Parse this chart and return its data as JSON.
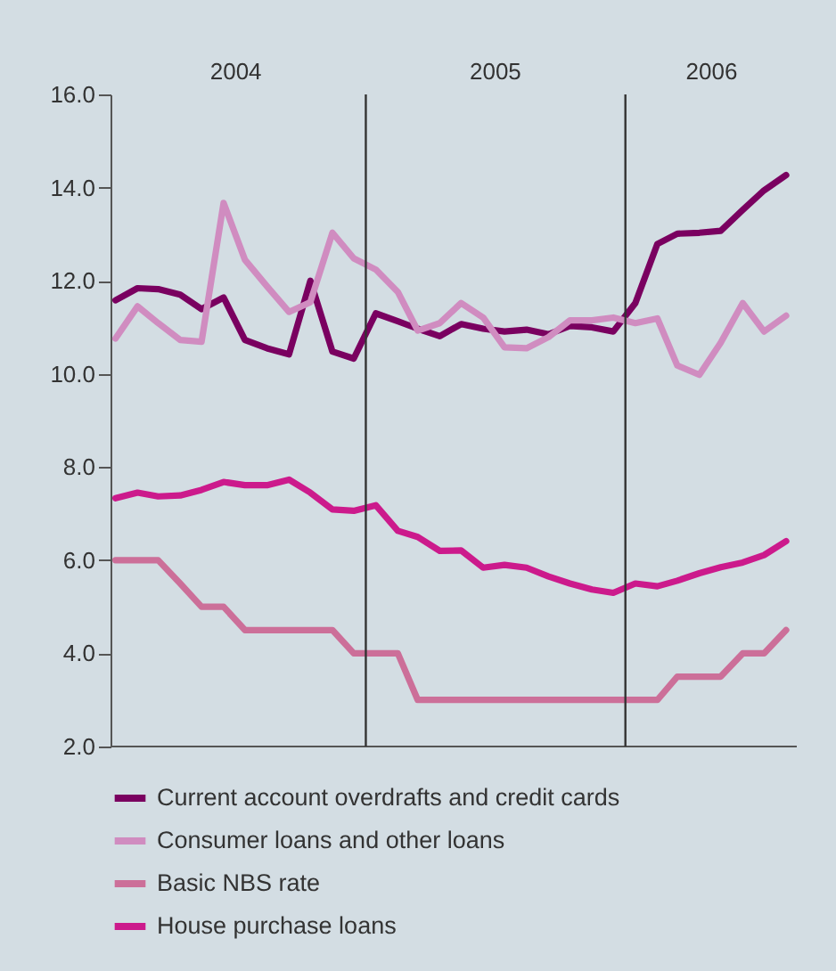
{
  "chart_data": {
    "type": "line",
    "x": [
      "2004-01-15",
      "2004-02-15",
      "2004-03-15",
      "2004-04-15",
      "2004-05-15",
      "2004-06-15",
      "2004-07-15",
      "2004-08-15",
      "2004-09-15",
      "2004-10-15",
      "2004-11-15",
      "2004-12-15",
      "2005-01-15",
      "2005-02-15",
      "2005-03-15",
      "2005-04-15",
      "2005-05-15",
      "2005-06-15",
      "2005-07-15",
      "2005-08-15",
      "2005-09-15",
      "2005-10-15",
      "2005-11-15",
      "2005-12-15",
      "2006-01-15",
      "2006-02-15",
      "2006-03-15",
      "2006-04-15",
      "2006-05-15",
      "2006-06-15",
      "2006-07-15",
      "2006-08-15"
    ],
    "series": [
      {
        "name": "Current account overdrafts and credit cards",
        "color": "#7a0060",
        "values": [
          11.58,
          11.84,
          11.82,
          11.7,
          11.39,
          11.64,
          10.73,
          10.55,
          10.42,
          12.0,
          10.48,
          10.33,
          11.3,
          11.13,
          10.97,
          10.81,
          11.07,
          10.97,
          10.91,
          10.95,
          10.85,
          11.03,
          11.0,
          10.91,
          11.52,
          12.79,
          13.01,
          13.03,
          13.07,
          13.52,
          13.94,
          14.27
        ]
      },
      {
        "name": "Consumer loans and other loans",
        "color": "#d08cc0",
        "values": [
          10.76,
          11.45,
          11.09,
          10.73,
          10.69,
          13.67,
          12.45,
          11.88,
          11.33,
          11.54,
          13.03,
          12.48,
          12.24,
          11.76,
          10.93,
          11.09,
          11.52,
          11.21,
          10.57,
          10.55,
          10.79,
          11.15,
          11.15,
          11.21,
          11.09,
          11.19,
          10.18,
          9.98,
          10.67,
          11.52,
          10.91,
          11.25
        ]
      },
      {
        "name": "Basic NBS rate",
        "color": "#cc6f99",
        "values": [
          6.0,
          6.0,
          6.0,
          5.5,
          5.0,
          5.0,
          4.5,
          4.5,
          4.5,
          4.5,
          4.5,
          4.0,
          4.0,
          4.0,
          3.0,
          3.0,
          3.0,
          3.0,
          3.0,
          3.0,
          3.0,
          3.0,
          3.0,
          3.0,
          3.0,
          3.0,
          3.5,
          3.5,
          3.5,
          4.0,
          4.0,
          4.5
        ]
      },
      {
        "name": "House purchase loans",
        "color": "#cc1a8c",
        "values": [
          7.33,
          7.45,
          7.37,
          7.39,
          7.51,
          7.68,
          7.61,
          7.61,
          7.73,
          7.45,
          7.09,
          7.06,
          7.18,
          6.63,
          6.5,
          6.2,
          6.21,
          5.84,
          5.9,
          5.84,
          5.65,
          5.5,
          5.37,
          5.3,
          5.5,
          5.44,
          5.56,
          5.72,
          5.85,
          5.95,
          6.11,
          6.41
        ]
      }
    ],
    "xlim": [
      "2004-01-08",
      "2006-08-30"
    ],
    "xticks": [
      {
        "value": "2004-07-01",
        "label": "2004"
      },
      {
        "value": "2005-07-01",
        "label": "2005"
      },
      {
        "value": "2006-05-01",
        "label": "2006"
      }
    ],
    "ylim": [
      2.0,
      16.0
    ],
    "yticks": [
      {
        "value": 2,
        "label": "2.0"
      },
      {
        "value": 4,
        "label": "4.0"
      },
      {
        "value": 6,
        "label": "6.0"
      },
      {
        "value": 8,
        "label": "8.0"
      },
      {
        "value": 10,
        "label": "10.0"
      },
      {
        "value": 12,
        "label": "12.0"
      },
      {
        "value": 14,
        "label": "14.0"
      },
      {
        "value": 16,
        "label": "16.0"
      }
    ],
    "ref_lines": [
      {
        "axis": "x",
        "value": "2005-01-01",
        "color": "#333333"
      },
      {
        "axis": "x",
        "value": "2006-01-01",
        "color": "#333333"
      }
    ],
    "legend": "bottom",
    "line_style": "solid"
  }
}
